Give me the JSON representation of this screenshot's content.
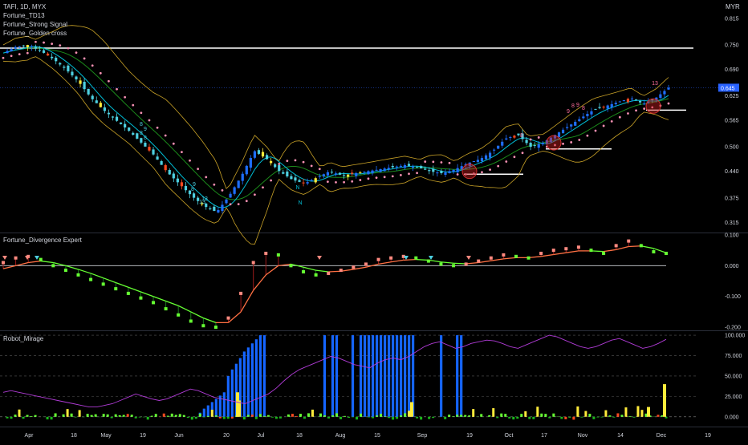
{
  "header": {
    "symbol_line": "TAFI, 1D, MYX",
    "indicators": [
      "Fortune_TD13",
      "Fortune_Strong Signal",
      "Fortune_Golden cross"
    ],
    "currency": "MYR"
  },
  "panes": {
    "divergence_title": "Fortune_Divergence Expert",
    "mirage_title": "Robot_Mirage"
  },
  "colors": {
    "background": "#000000",
    "axis_text": "#d1d4dc",
    "bull_candle": "#1e6fff",
    "bear_candle": "#4dd0e1",
    "signal_red": "#ff4a1f",
    "signal_yellow": "#ffeb3b",
    "sma_fast": "#00bcd4",
    "sma_slow": "#1b8a1b",
    "bollinger": "#c9a227",
    "sar_dots": "#f48fb1",
    "price_tag": "#2962ff",
    "macd_up": "#66ff33",
    "macd_down": "#ff7043",
    "mirage_blue": "#1565ff",
    "mirage_line": "#b03bd6"
  },
  "chart_data": [
    {
      "type": "candlestick",
      "x_ticks": [
        "Apr",
        "18",
        "May",
        "19",
        "Jun",
        "20",
        "Jul",
        "18",
        "Aug",
        "15",
        "Sep",
        "19",
        "Oct",
        "17",
        "Nov",
        "14",
        "Dec",
        "19"
      ],
      "y_ticks": [
        "0.815",
        "0.750",
        "0.690",
        "0.625",
        "0.565",
        "0.500",
        "0.440",
        "0.375",
        "0.315"
      ],
      "ylim": [
        0.29,
        0.86
      ],
      "last_price": "0.645",
      "annotations": [
        "13",
        "9",
        "8",
        "8",
        "8",
        "9",
        "8",
        "13",
        "9",
        "8",
        "8",
        "9",
        "8",
        "13",
        "N",
        "N"
      ],
      "support_lines": [
        0.742,
        0.59,
        0.495,
        0.433
      ],
      "close_path": [
        0.73,
        0.745,
        0.75,
        0.735,
        0.715,
        0.69,
        0.66,
        0.62,
        0.59,
        0.565,
        0.54,
        0.51,
        0.48,
        0.44,
        0.41,
        0.38,
        0.355,
        0.34,
        0.38,
        0.43,
        0.49,
        0.47,
        0.44,
        0.42,
        0.41,
        0.425,
        0.44,
        0.43,
        0.435,
        0.44,
        0.445,
        0.45,
        0.455,
        0.45,
        0.44,
        0.435,
        0.445,
        0.46,
        0.47,
        0.49,
        0.52,
        0.53,
        0.5,
        0.51,
        0.53,
        0.55,
        0.57,
        0.59,
        0.6,
        0.61,
        0.62,
        0.605,
        0.62,
        0.645
      ]
    },
    {
      "type": "line",
      "title": "Fortune_Divergence Expert",
      "y_ticks": [
        "0.100",
        "0.000",
        "-0.100",
        "-0.200"
      ],
      "ylim": [
        -0.21,
        0.105
      ],
      "series": [
        {
          "values": [
            0.01,
            0.025,
            0.03,
            0.02,
            0.0,
            -0.015,
            -0.03,
            -0.045,
            -0.06,
            -0.075,
            -0.09,
            -0.105,
            -0.12,
            -0.14,
            -0.16,
            -0.18,
            -0.195,
            -0.2,
            -0.17,
            -0.09,
            0.01,
            0.04,
            0.035,
            0.0,
            -0.02,
            -0.03,
            -0.025,
            -0.015,
            -0.005,
            0.005,
            0.02,
            0.025,
            0.03,
            0.025,
            0.015,
            0.005,
            0.0,
            0.005,
            0.015,
            0.025,
            0.035,
            0.03,
            0.025,
            0.04,
            0.05,
            0.055,
            0.06,
            0.05,
            0.04,
            0.065,
            0.08,
            0.065,
            0.045,
            0.04
          ]
        },
        {
          "values": [
            -0.01,
            0.0,
            0.01,
            0.015,
            0.01,
            0.0,
            -0.012,
            -0.025,
            -0.04,
            -0.055,
            -0.07,
            -0.085,
            -0.1,
            -0.115,
            -0.13,
            -0.15,
            -0.17,
            -0.185,
            -0.185,
            -0.15,
            -0.08,
            -0.03,
            0.0,
            0.005,
            -0.005,
            -0.015,
            -0.02,
            -0.018,
            -0.012,
            -0.005,
            0.005,
            0.012,
            0.018,
            0.02,
            0.018,
            0.012,
            0.008,
            0.006,
            0.01,
            0.016,
            0.022,
            0.026,
            0.026,
            0.03,
            0.036,
            0.042,
            0.048,
            0.048,
            0.046,
            0.052,
            0.062,
            0.064,
            0.056,
            0.042
          ]
        }
      ]
    },
    {
      "type": "bar",
      "title": "Robot_Mirage",
      "y_ticks": [
        "100.000",
        "75.000",
        "50.000",
        "25.000",
        "0.000"
      ],
      "ylim": [
        -12,
        105
      ],
      "blue_bars": [
        0,
        0,
        0,
        0,
        0,
        0,
        0,
        0,
        0,
        0,
        0,
        0,
        0,
        0,
        0,
        0,
        0,
        0,
        0,
        0,
        0,
        0,
        0,
        0,
        0,
        0,
        0,
        0,
        0,
        0,
        0,
        0,
        0,
        0,
        0,
        0,
        0,
        0,
        0,
        0,
        0,
        0,
        0,
        0,
        0,
        0,
        0,
        0,
        0,
        5,
        10,
        14,
        18,
        22,
        26,
        30,
        50,
        58,
        65,
        72,
        80,
        85,
        90,
        95,
        100,
        100,
        0,
        0,
        0,
        0,
        0,
        0,
        0,
        0,
        0,
        0,
        0,
        0,
        0,
        0,
        100,
        0,
        100,
        100,
        0,
        0,
        0,
        100,
        0,
        100,
        100,
        100,
        100,
        100,
        100,
        100,
        100,
        100,
        100,
        100,
        100,
        100,
        100,
        0,
        0,
        0,
        0,
        0,
        0,
        100,
        0,
        0,
        0,
        100,
        100
      ],
      "line": [
        30,
        32,
        30,
        28,
        26,
        24,
        22,
        20,
        18,
        16,
        14,
        12,
        12,
        14,
        16,
        20,
        24,
        28,
        25,
        22,
        20,
        22,
        26,
        30,
        34,
        32,
        28,
        24,
        22,
        20,
        18,
        16,
        20,
        24,
        28,
        35,
        44,
        52,
        58,
        62,
        66,
        70,
        74,
        72,
        68,
        64,
        62,
        60,
        66,
        70,
        72,
        70,
        74,
        80,
        86,
        90,
        92,
        88,
        84,
        86,
        90,
        92,
        94,
        93,
        90,
        86,
        84,
        88,
        92,
        96,
        100,
        98,
        94,
        90,
        86,
        84,
        86,
        90,
        94,
        96,
        92,
        88,
        84,
        86,
        90,
        95
      ]
    }
  ]
}
